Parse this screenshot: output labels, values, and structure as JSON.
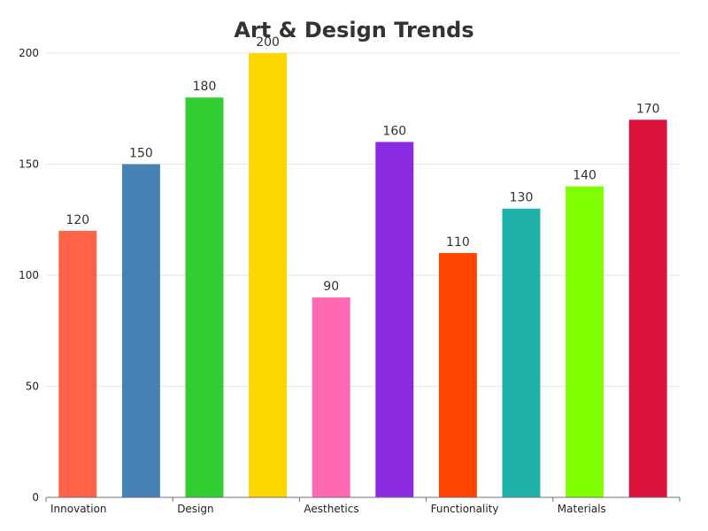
{
  "chart_data": {
    "type": "bar",
    "title": "Art & Design Trends",
    "categories": [
      "Innovation",
      "",
      "Design",
      "",
      "Aesthetics",
      "",
      "Functionality",
      "",
      "Materials",
      ""
    ],
    "values": [
      120,
      150,
      180,
      200,
      90,
      160,
      110,
      130,
      140,
      170
    ],
    "colors": [
      "#FF6347",
      "#4682B4",
      "#32CD32",
      "#FFD700",
      "#FF69B4",
      "#8A2BE2",
      "#FF4500",
      "#20B2AA",
      "#7FFF00",
      "#DC143C"
    ],
    "ylim": [
      0,
      200
    ],
    "yticks": [
      0,
      50,
      100,
      150,
      200
    ],
    "grid": true,
    "show_value_labels": true,
    "xlabel": "",
    "ylabel": ""
  }
}
